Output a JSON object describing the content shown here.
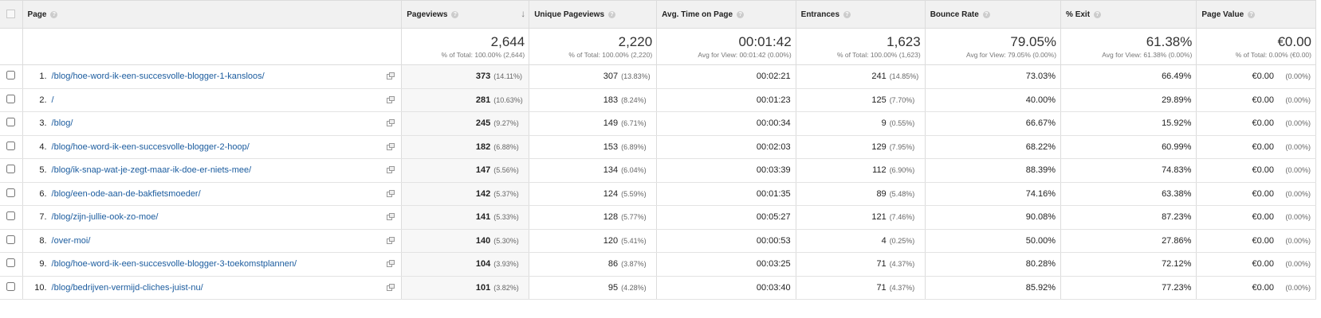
{
  "header": {
    "page": "Page",
    "pageviews": "Pageviews",
    "unique_pageviews": "Unique Pageviews",
    "avg_time": "Avg. Time on Page",
    "entrances": "Entrances",
    "bounce_rate": "Bounce Rate",
    "exit": "% Exit",
    "page_value": "Page Value",
    "help_glyph": "?",
    "sort_glyph": "↓"
  },
  "totals": {
    "pageviews": {
      "big": "2,644",
      "sub": "% of Total: 100.00% (2,644)"
    },
    "unique_pageviews": {
      "big": "2,220",
      "sub": "% of Total: 100.00% (2,220)"
    },
    "avg_time": {
      "big": "00:01:42",
      "sub": "Avg for View: 00:01:42 (0.00%)"
    },
    "entrances": {
      "big": "1,623",
      "sub": "% of Total: 100.00% (1,623)"
    },
    "bounce_rate": {
      "big": "79.05%",
      "sub": "Avg for View: 79.05% (0.00%)"
    },
    "exit": {
      "big": "61.38%",
      "sub": "Avg for View: 61.38% (0.00%)"
    },
    "page_value": {
      "big": "€0.00",
      "sub": "% of Total: 0.00% (€0.00)"
    }
  },
  "rows": [
    {
      "idx": "1.",
      "page": "/blog/hoe-word-ik-een-succesvolle-blogger-1-kansloos/",
      "pv": "373",
      "pv_pct": "(14.11%)",
      "upv": "307",
      "upv_pct": "(13.83%)",
      "avg": "00:02:21",
      "ent": "241",
      "ent_pct": "(14.85%)",
      "br": "73.03%",
      "exit": "66.49%",
      "val": "€0.00",
      "val_pct": "(0.00%)"
    },
    {
      "idx": "2.",
      "page": "/",
      "pv": "281",
      "pv_pct": "(10.63%)",
      "upv": "183",
      "upv_pct": "(8.24%)",
      "avg": "00:01:23",
      "ent": "125",
      "ent_pct": "(7.70%)",
      "br": "40.00%",
      "exit": "29.89%",
      "val": "€0.00",
      "val_pct": "(0.00%)"
    },
    {
      "idx": "3.",
      "page": "/blog/",
      "pv": "245",
      "pv_pct": "(9.27%)",
      "upv": "149",
      "upv_pct": "(6.71%)",
      "avg": "00:00:34",
      "ent": "9",
      "ent_pct": "(0.55%)",
      "br": "66.67%",
      "exit": "15.92%",
      "val": "€0.00",
      "val_pct": "(0.00%)"
    },
    {
      "idx": "4.",
      "page": "/blog/hoe-word-ik-een-succesvolle-blogger-2-hoop/",
      "pv": "182",
      "pv_pct": "(6.88%)",
      "upv": "153",
      "upv_pct": "(6.89%)",
      "avg": "00:02:03",
      "ent": "129",
      "ent_pct": "(7.95%)",
      "br": "68.22%",
      "exit": "60.99%",
      "val": "€0.00",
      "val_pct": "(0.00%)"
    },
    {
      "idx": "5.",
      "page": "/blog/ik-snap-wat-je-zegt-maar-ik-doe-er-niets-mee/",
      "pv": "147",
      "pv_pct": "(5.56%)",
      "upv": "134",
      "upv_pct": "(6.04%)",
      "avg": "00:03:39",
      "ent": "112",
      "ent_pct": "(6.90%)",
      "br": "88.39%",
      "exit": "74.83%",
      "val": "€0.00",
      "val_pct": "(0.00%)"
    },
    {
      "idx": "6.",
      "page": "/blog/een-ode-aan-de-bakfietsmoeder/",
      "pv": "142",
      "pv_pct": "(5.37%)",
      "upv": "124",
      "upv_pct": "(5.59%)",
      "avg": "00:01:35",
      "ent": "89",
      "ent_pct": "(5.48%)",
      "br": "74.16%",
      "exit": "63.38%",
      "val": "€0.00",
      "val_pct": "(0.00%)"
    },
    {
      "idx": "7.",
      "page": "/blog/zijn-jullie-ook-zo-moe/",
      "pv": "141",
      "pv_pct": "(5.33%)",
      "upv": "128",
      "upv_pct": "(5.77%)",
      "avg": "00:05:27",
      "ent": "121",
      "ent_pct": "(7.46%)",
      "br": "90.08%",
      "exit": "87.23%",
      "val": "€0.00",
      "val_pct": "(0.00%)"
    },
    {
      "idx": "8.",
      "page": "/over-moi/",
      "pv": "140",
      "pv_pct": "(5.30%)",
      "upv": "120",
      "upv_pct": "(5.41%)",
      "avg": "00:00:53",
      "ent": "4",
      "ent_pct": "(0.25%)",
      "br": "50.00%",
      "exit": "27.86%",
      "val": "€0.00",
      "val_pct": "(0.00%)"
    },
    {
      "idx": "9.",
      "page": "/blog/hoe-word-ik-een-succesvolle-blogger-3-toekomstplannen/",
      "pv": "104",
      "pv_pct": "(3.93%)",
      "upv": "86",
      "upv_pct": "(3.87%)",
      "avg": "00:03:25",
      "ent": "71",
      "ent_pct": "(4.37%)",
      "br": "80.28%",
      "exit": "72.12%",
      "val": "€0.00",
      "val_pct": "(0.00%)"
    },
    {
      "idx": "10.",
      "page": "/blog/bedrijven-vermijd-cliches-juist-nu/",
      "pv": "101",
      "pv_pct": "(3.82%)",
      "upv": "95",
      "upv_pct": "(4.28%)",
      "avg": "00:03:40",
      "ent": "71",
      "ent_pct": "(4.37%)",
      "br": "85.92%",
      "exit": "77.23%",
      "val": "€0.00",
      "val_pct": "(0.00%)"
    }
  ],
  "colors": {
    "link": "#1a5b9e",
    "header_bg": "#f1f1f1",
    "border": "#dcdcdc"
  },
  "icons": {
    "help": "question-mark-icon",
    "sort": "sort-descending-arrow-icon",
    "row_action": "open-in-new-window-icon"
  }
}
